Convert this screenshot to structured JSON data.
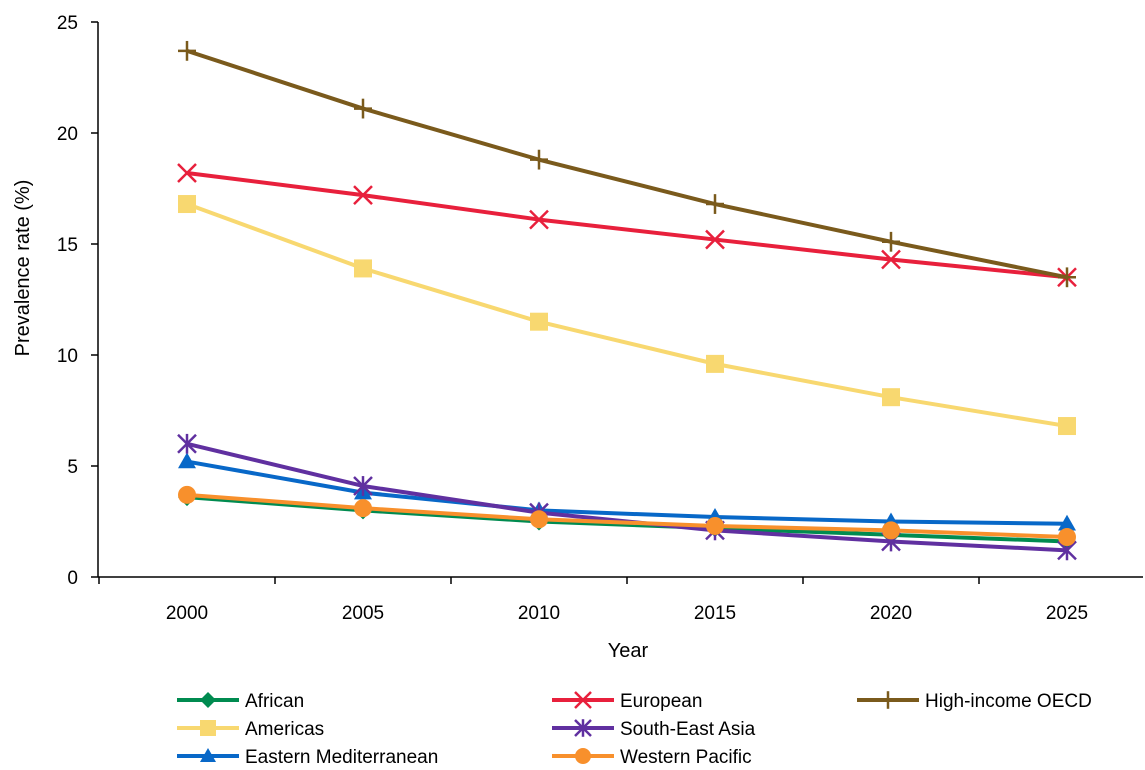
{
  "chart_data": {
    "type": "line",
    "x": [
      2000,
      2005,
      2010,
      2015,
      2020,
      2025
    ],
    "xlabel": "Year",
    "ylabel": "Prevalence rate (%)",
    "ylim": [
      0,
      25
    ],
    "yticks": [
      0,
      5,
      10,
      15,
      20,
      25
    ],
    "grid": false,
    "legend_position": "bottom",
    "series": [
      {
        "name": "African",
        "color": "#008b50",
        "marker": "diamond",
        "values": [
          3.6,
          3.0,
          2.5,
          2.2,
          1.9,
          1.6
        ]
      },
      {
        "name": "Americas",
        "color": "#f8d870",
        "marker": "square",
        "values": [
          16.8,
          13.9,
          11.5,
          9.6,
          8.1,
          6.8
        ]
      },
      {
        "name": "Eastern Mediterranean",
        "color": "#0868c8",
        "marker": "triangle",
        "values": [
          5.2,
          3.8,
          3.0,
          2.7,
          2.5,
          2.4
        ]
      },
      {
        "name": "European",
        "color": "#e8203c",
        "marker": "x",
        "values": [
          18.2,
          17.2,
          16.1,
          15.2,
          14.3,
          13.5
        ]
      },
      {
        "name": "South-East Asia",
        "color": "#6030a0",
        "marker": "asterisk",
        "values": [
          6.0,
          4.1,
          2.9,
          2.1,
          1.6,
          1.2
        ]
      },
      {
        "name": "Western Pacific",
        "color": "#f8902c",
        "marker": "circle",
        "values": [
          3.7,
          3.1,
          2.6,
          2.3,
          2.1,
          1.8
        ]
      },
      {
        "name": "High-income OECD",
        "color": "#7a5a1c",
        "marker": "plus",
        "values": [
          23.7,
          21.1,
          18.8,
          16.8,
          15.1,
          13.5
        ]
      }
    ]
  }
}
